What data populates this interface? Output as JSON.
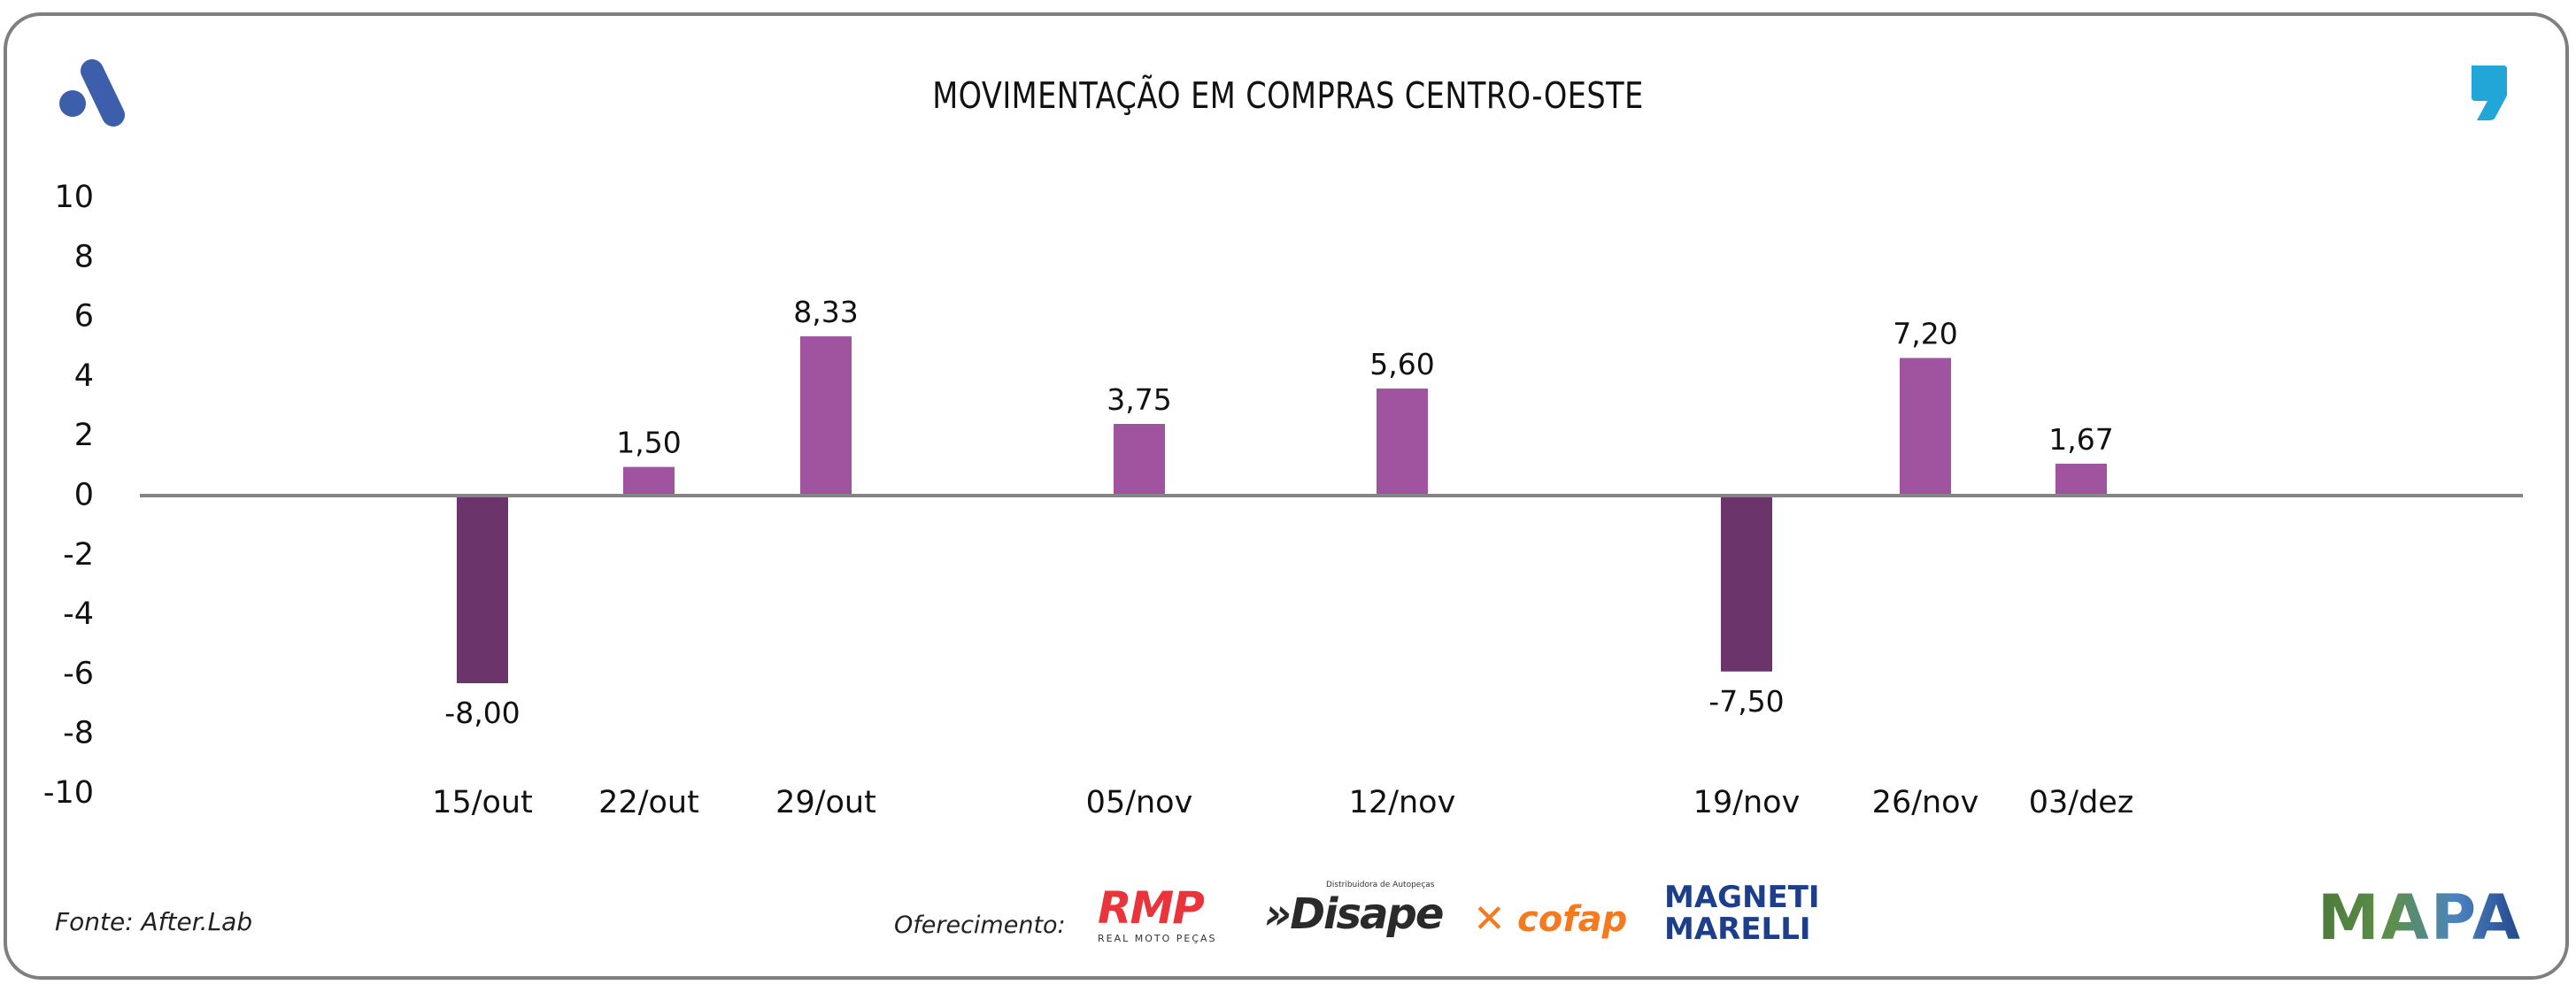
{
  "header": {
    "title": "MOVIMENTAÇÃO EM COMPRAS CENTRO-OESTE",
    "left_logo_icon": "after-lab-a-logo-icon",
    "right_logo_icon": "quote-comma-logo-icon"
  },
  "footer": {
    "source": "Fonte: After.Lab",
    "sponsor_label": "Oferecimento:",
    "sponsors": [
      {
        "name": "RMP",
        "subtitle": "REAL MOTO PEÇAS"
      },
      {
        "name": "Disape",
        "subtitle": "Distribuidora de Autopeças"
      },
      {
        "name": "cofap",
        "subtitle": ""
      },
      {
        "name": "MAGNETI MARELLI",
        "subtitle": ""
      }
    ],
    "brand": "MAPA"
  },
  "colors": {
    "positive_bar": "#a054a0",
    "negative_bar": "#6b356b",
    "zero_line": "#858585",
    "logo_blue": "#3d5eab",
    "quote_blue": "#22a6d8"
  },
  "chart_data": {
    "type": "bar",
    "title": "MOVIMENTAÇÃO EM COMPRAS CENTRO-OESTE",
    "xlabel": "",
    "ylabel": "",
    "ylim": [
      -10,
      10
    ],
    "yticks": [
      "10",
      "8",
      "6",
      "4",
      "2",
      "0",
      "-2",
      "-4",
      "-6",
      "-8",
      "-10"
    ],
    "grid": false,
    "legend": "none",
    "categories": [
      "15/out",
      "22/out",
      "29/out",
      "05/nov",
      "12/nov",
      "19/nov",
      "26/nov",
      "03/dez"
    ],
    "values": [
      -8.0,
      1.5,
      8.33,
      3.75,
      5.6,
      -7.5,
      7.2,
      1.67
    ],
    "data_labels": [
      "-8,00",
      "1,50",
      "8,33",
      "3,75",
      "5,60",
      "-7,50",
      "7,20",
      "1,67"
    ]
  }
}
